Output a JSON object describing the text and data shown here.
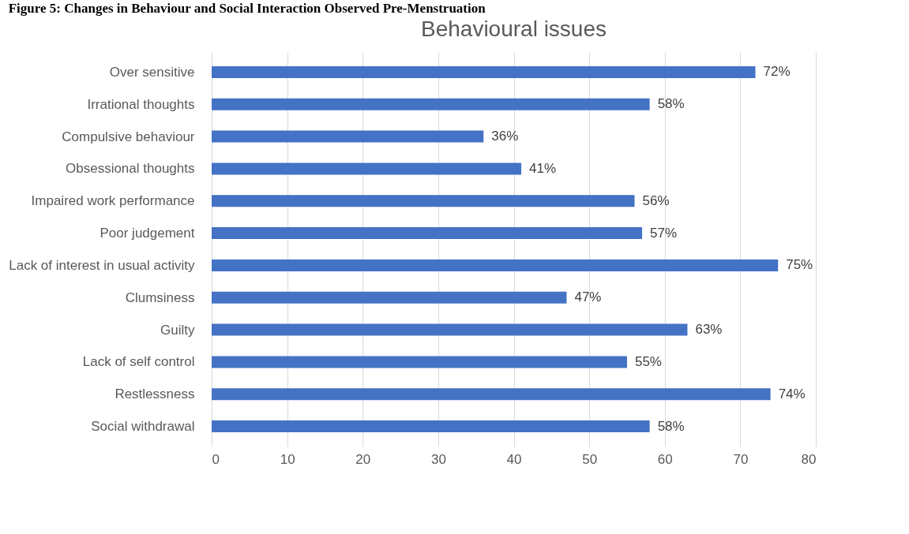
{
  "chart_data": {
    "type": "bar",
    "orientation": "horizontal",
    "title": "Figure 5: Changes in Behaviour and Social Interaction Observed Pre-Menstruation",
    "subtitle": "Behavioural issues",
    "categories": [
      "Over sensitive",
      "Irrational thoughts",
      "Compulsive behaviour",
      "Obsessional thoughts",
      "Impaired work performance",
      "Poor judgement",
      "Lack of interest in usual activity",
      "Clumsiness",
      "Guilty",
      "Lack of self control",
      "Restlessness",
      "Social withdrawal"
    ],
    "values": [
      72,
      58,
      36,
      41,
      56,
      57,
      75,
      47,
      63,
      55,
      74,
      58
    ],
    "value_labels": [
      "72%",
      "58%",
      "36%",
      "41%",
      "56%",
      "57%",
      "75%",
      "47%",
      "63%",
      "55%",
      "74%",
      "58%"
    ],
    "color": "#4472c4",
    "xlim": [
      0,
      80
    ],
    "xticks": [
      0,
      10,
      20,
      30,
      40,
      50,
      60,
      70,
      80
    ],
    "grid": "x"
  }
}
